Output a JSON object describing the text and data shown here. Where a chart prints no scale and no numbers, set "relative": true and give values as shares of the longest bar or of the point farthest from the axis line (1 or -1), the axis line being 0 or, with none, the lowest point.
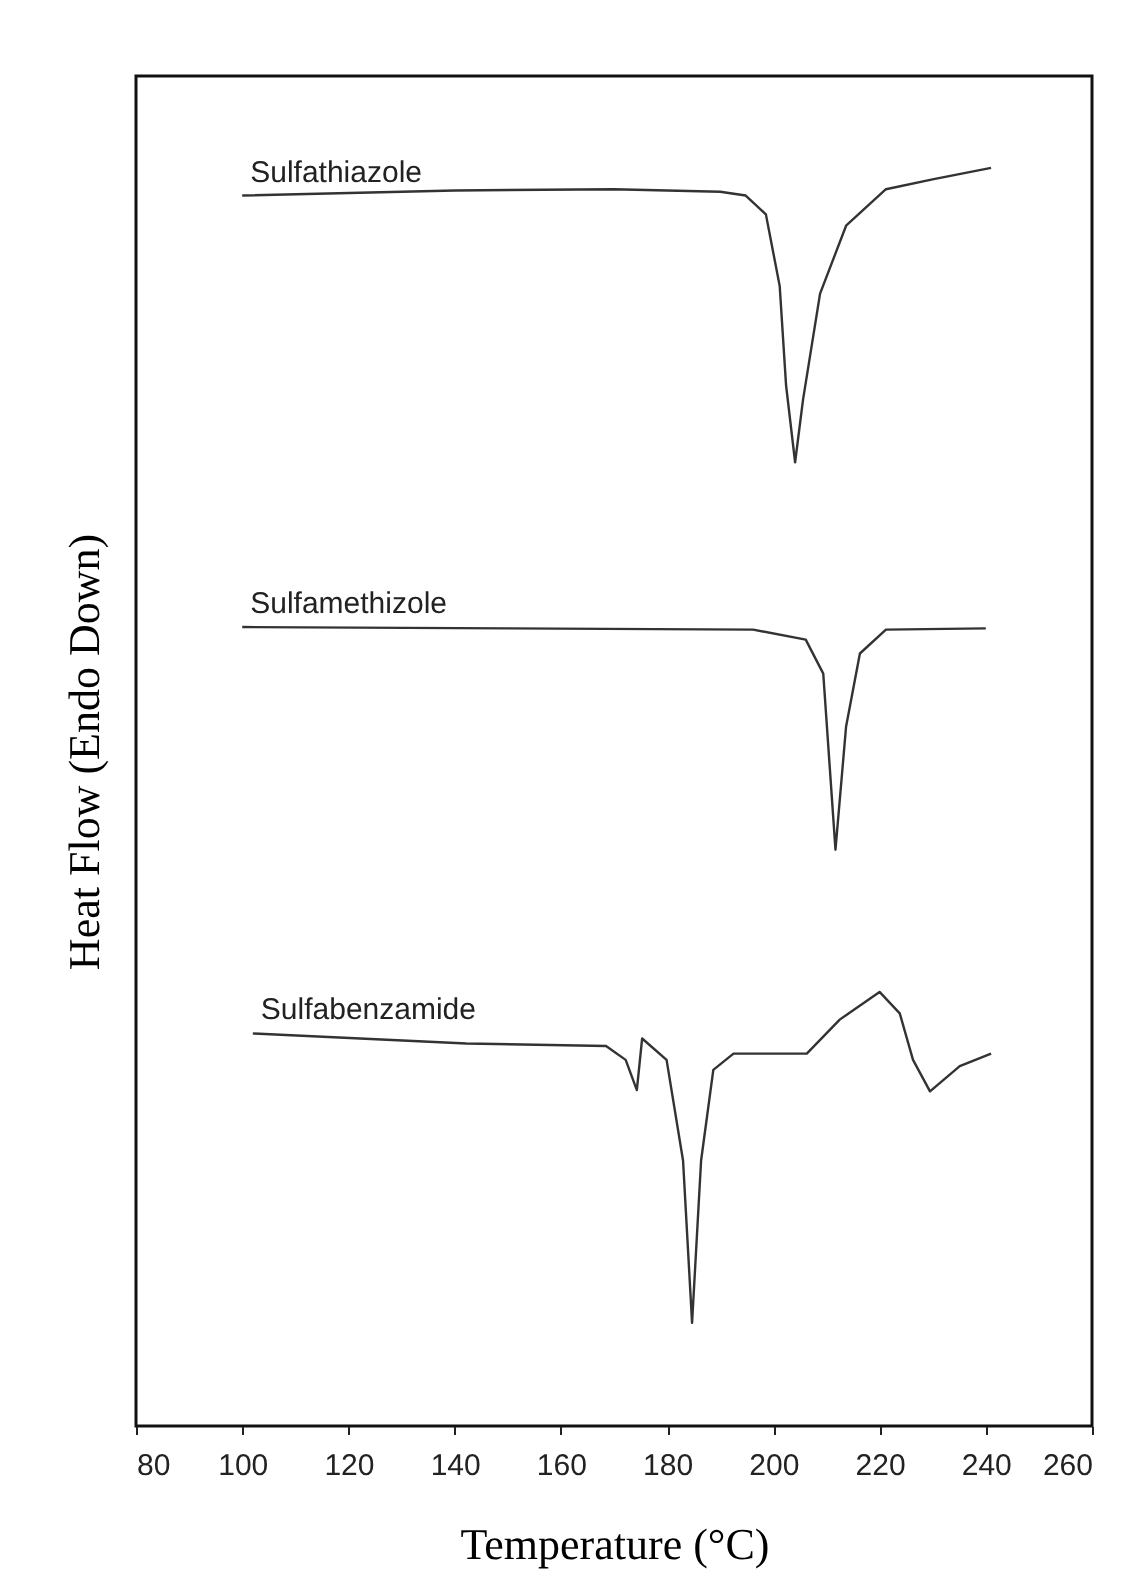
{
  "chart_data": {
    "type": "line",
    "relative": true,
    "xlabel": "Temperature (°C)",
    "ylabel": "Heat Flow (Endo Down)",
    "xlim": [
      80,
      260
    ],
    "xticks": [
      80,
      100,
      120,
      140,
      160,
      180,
      200,
      220,
      240,
      260
    ],
    "grid": false,
    "legend": false,
    "line_style": "solid",
    "marker": "none",
    "series": [
      {
        "name": "Sulfathiazole",
        "color": "#333333",
        "x": [
          100,
          140,
          170,
          190,
          194.8,
          198.6,
          201.2,
          202.4,
          204.1,
          205.6,
          208.8,
          213.7,
          221.2,
          230.2,
          241
        ],
        "values": [
          0.978,
          0.982,
          0.983,
          0.981,
          0.978,
          0.963,
          0.906,
          0.827,
          0.766,
          0.816,
          0.9,
          0.954,
          0.983,
          0.991,
          1.0
        ]
      },
      {
        "name": "Sulfamethizole",
        "color": "#333333",
        "x": [
          100,
          150,
          196.2,
          206.1,
          209.4,
          211.7,
          213.7,
          216.3,
          221.2,
          240
        ],
        "values": [
          0.635,
          0.634,
          0.633,
          0.625,
          0.598,
          0.458,
          0.556,
          0.614,
          0.633,
          0.634
        ]
      },
      {
        "name": "Sulfabenzamide",
        "color": "#333333",
        "x": [
          102,
          142.2,
          168.5,
          172.2,
          174.3,
          175.3,
          179.9,
          183,
          184.7,
          186.4,
          188.7,
          192.5,
          206.3,
          212.5,
          220,
          223.8,
          226.3,
          229.5,
          235.1,
          241
        ],
        "values": [
          0.312,
          0.304,
          0.302,
          0.291,
          0.267,
          0.308,
          0.291,
          0.211,
          0.082,
          0.211,
          0.283,
          0.296,
          0.296,
          0.323,
          0.345,
          0.328,
          0.291,
          0.266,
          0.286,
          0.296
        ]
      }
    ]
  }
}
